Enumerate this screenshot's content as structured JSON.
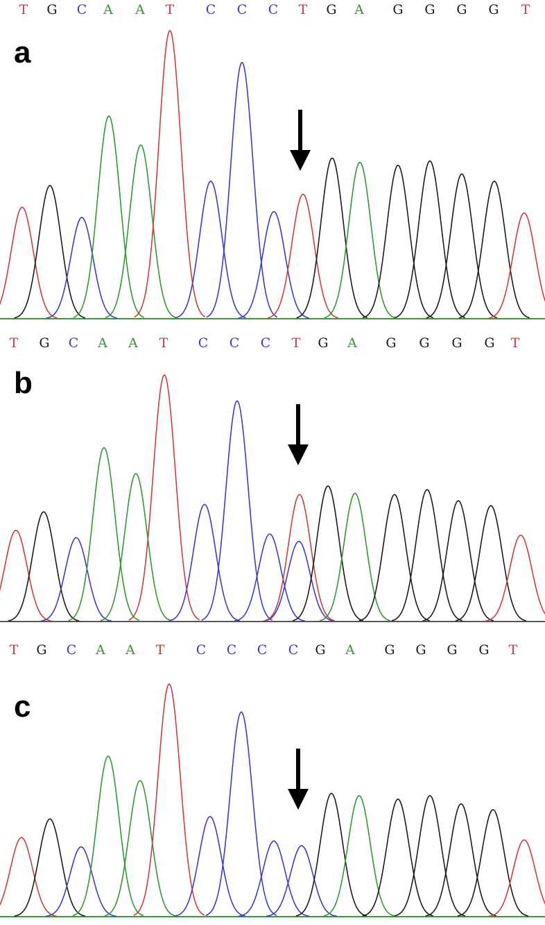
{
  "colors": {
    "A": "#2e9a2e",
    "C": "#3a3acd",
    "G": "#1a1a1a",
    "T": "#cf3b3b",
    "baseline": "#3a9a3a"
  },
  "chart_data": [
    {
      "type": "line",
      "panel_label": "a",
      "bases": [
        {
          "b": "T",
          "x": 34
        },
        {
          "b": "G",
          "x": 75
        },
        {
          "b": "C",
          "x": 118
        },
        {
          "b": "A",
          "x": 156
        },
        {
          "b": "A",
          "x": 202
        },
        {
          "b": "T",
          "x": 245
        },
        {
          "b": "C",
          "x": 304
        },
        {
          "b": "C",
          "x": 349
        },
        {
          "b": "C",
          "x": 394
        },
        {
          "b": "T",
          "x": 437
        },
        {
          "b": "G",
          "x": 478
        },
        {
          "b": "A",
          "x": 518
        },
        {
          "b": "G",
          "x": 574
        },
        {
          "b": "G",
          "x": 620
        },
        {
          "b": "G",
          "x": 666
        },
        {
          "b": "G",
          "x": 712
        },
        {
          "b": "T",
          "x": 758
        }
      ],
      "peaks": [
        {
          "x": 32,
          "h": 0.385,
          "b": "T"
        },
        {
          "x": 72,
          "h": 0.46,
          "b": "G"
        },
        {
          "x": 118,
          "h": 0.35,
          "b": "C"
        },
        {
          "x": 157,
          "h": 0.7,
          "b": "A"
        },
        {
          "x": 203,
          "h": 0.6,
          "b": "A"
        },
        {
          "x": 245,
          "h": 0.995,
          "b": "T"
        },
        {
          "x": 304,
          "h": 0.475,
          "b": "C"
        },
        {
          "x": 349,
          "h": 0.885,
          "b": "C"
        },
        {
          "x": 395,
          "h": 0.37,
          "b": "C"
        },
        {
          "x": 437,
          "h": 0.43,
          "b": "T"
        },
        {
          "x": 479,
          "h": 0.555,
          "b": "G"
        },
        {
          "x": 519,
          "h": 0.54,
          "b": "A"
        },
        {
          "x": 574,
          "h": 0.53,
          "b": "G"
        },
        {
          "x": 620,
          "h": 0.545,
          "b": "G"
        },
        {
          "x": 666,
          "h": 0.5,
          "b": "G"
        },
        {
          "x": 713,
          "h": 0.475,
          "b": "G"
        },
        {
          "x": 756,
          "h": 0.365,
          "b": "T"
        }
      ],
      "arrow_x": 433
    },
    {
      "type": "line",
      "panel_label": "b",
      "bases": [
        {
          "b": "T",
          "x": 20
        },
        {
          "b": "G",
          "x": 64
        },
        {
          "b": "C",
          "x": 106
        },
        {
          "b": "A",
          "x": 148
        },
        {
          "b": "A",
          "x": 192
        },
        {
          "b": "T",
          "x": 236
        },
        {
          "b": "C",
          "x": 293
        },
        {
          "b": "C",
          "x": 338
        },
        {
          "b": "C",
          "x": 383
        },
        {
          "b": "T",
          "x": 427
        },
        {
          "b": "G",
          "x": 466
        },
        {
          "b": "A",
          "x": 508
        },
        {
          "b": "G",
          "x": 564
        },
        {
          "b": "G",
          "x": 612
        },
        {
          "b": "G",
          "x": 659
        },
        {
          "b": "G",
          "x": 706
        },
        {
          "b": "T",
          "x": 743
        }
      ],
      "peaks": [
        {
          "x": 23,
          "h": 0.37,
          "b": "T"
        },
        {
          "x": 63,
          "h": 0.445,
          "b": "G"
        },
        {
          "x": 110,
          "h": 0.34,
          "b": "C"
        },
        {
          "x": 150,
          "h": 0.705,
          "b": "A"
        },
        {
          "x": 196,
          "h": 0.6,
          "b": "A"
        },
        {
          "x": 237,
          "h": 1.0,
          "b": "T"
        },
        {
          "x": 295,
          "h": 0.475,
          "b": "C"
        },
        {
          "x": 342,
          "h": 0.895,
          "b": "C"
        },
        {
          "x": 389,
          "h": 0.355,
          "b": "C"
        },
        {
          "x": 431,
          "h": 0.325,
          "b": "C"
        },
        {
          "x": 432,
          "h": 0.515,
          "b": "T"
        },
        {
          "x": 473,
          "h": 0.55,
          "b": "G"
        },
        {
          "x": 512,
          "h": 0.52,
          "b": "A"
        },
        {
          "x": 569,
          "h": 0.515,
          "b": "G"
        },
        {
          "x": 616,
          "h": 0.535,
          "b": "G"
        },
        {
          "x": 661,
          "h": 0.49,
          "b": "G"
        },
        {
          "x": 708,
          "h": 0.47,
          "b": "G"
        },
        {
          "x": 751,
          "h": 0.35,
          "b": "T"
        }
      ],
      "arrow_x": 430
    },
    {
      "type": "line",
      "panel_label": "c",
      "bases": [
        {
          "b": "T",
          "x": 20
        },
        {
          "b": "G",
          "x": 60
        },
        {
          "b": "C",
          "x": 103
        },
        {
          "b": "A",
          "x": 145
        },
        {
          "b": "A",
          "x": 188
        },
        {
          "b": "T",
          "x": 231
        },
        {
          "b": "C",
          "x": 290
        },
        {
          "b": "C",
          "x": 334
        },
        {
          "b": "C",
          "x": 378
        },
        {
          "b": "C",
          "x": 423
        },
        {
          "b": "G",
          "x": 462
        },
        {
          "b": "A",
          "x": 505
        },
        {
          "b": "G",
          "x": 562
        },
        {
          "b": "G",
          "x": 607
        },
        {
          "b": "G",
          "x": 652
        },
        {
          "b": "G",
          "x": 698
        },
        {
          "b": "T",
          "x": 740
        }
      ],
      "peaks": [
        {
          "x": 31,
          "h": 0.34,
          "b": "T"
        },
        {
          "x": 72,
          "h": 0.42,
          "b": "G"
        },
        {
          "x": 117,
          "h": 0.3,
          "b": "C"
        },
        {
          "x": 156,
          "h": 0.69,
          "b": "A"
        },
        {
          "x": 202,
          "h": 0.585,
          "b": "A"
        },
        {
          "x": 244,
          "h": 1.0,
          "b": "T"
        },
        {
          "x": 303,
          "h": 0.43,
          "b": "C"
        },
        {
          "x": 348,
          "h": 0.88,
          "b": "C"
        },
        {
          "x": 395,
          "h": 0.325,
          "b": "C"
        },
        {
          "x": 435,
          "h": 0.305,
          "b": "C"
        },
        {
          "x": 478,
          "h": 0.53,
          "b": "G"
        },
        {
          "x": 518,
          "h": 0.52,
          "b": "A"
        },
        {
          "x": 574,
          "h": 0.505,
          "b": "G"
        },
        {
          "x": 620,
          "h": 0.52,
          "b": "G"
        },
        {
          "x": 665,
          "h": 0.485,
          "b": "G"
        },
        {
          "x": 711,
          "h": 0.46,
          "b": "G"
        },
        {
          "x": 756,
          "h": 0.33,
          "b": "T"
        }
      ],
      "arrow_x": 430
    }
  ]
}
